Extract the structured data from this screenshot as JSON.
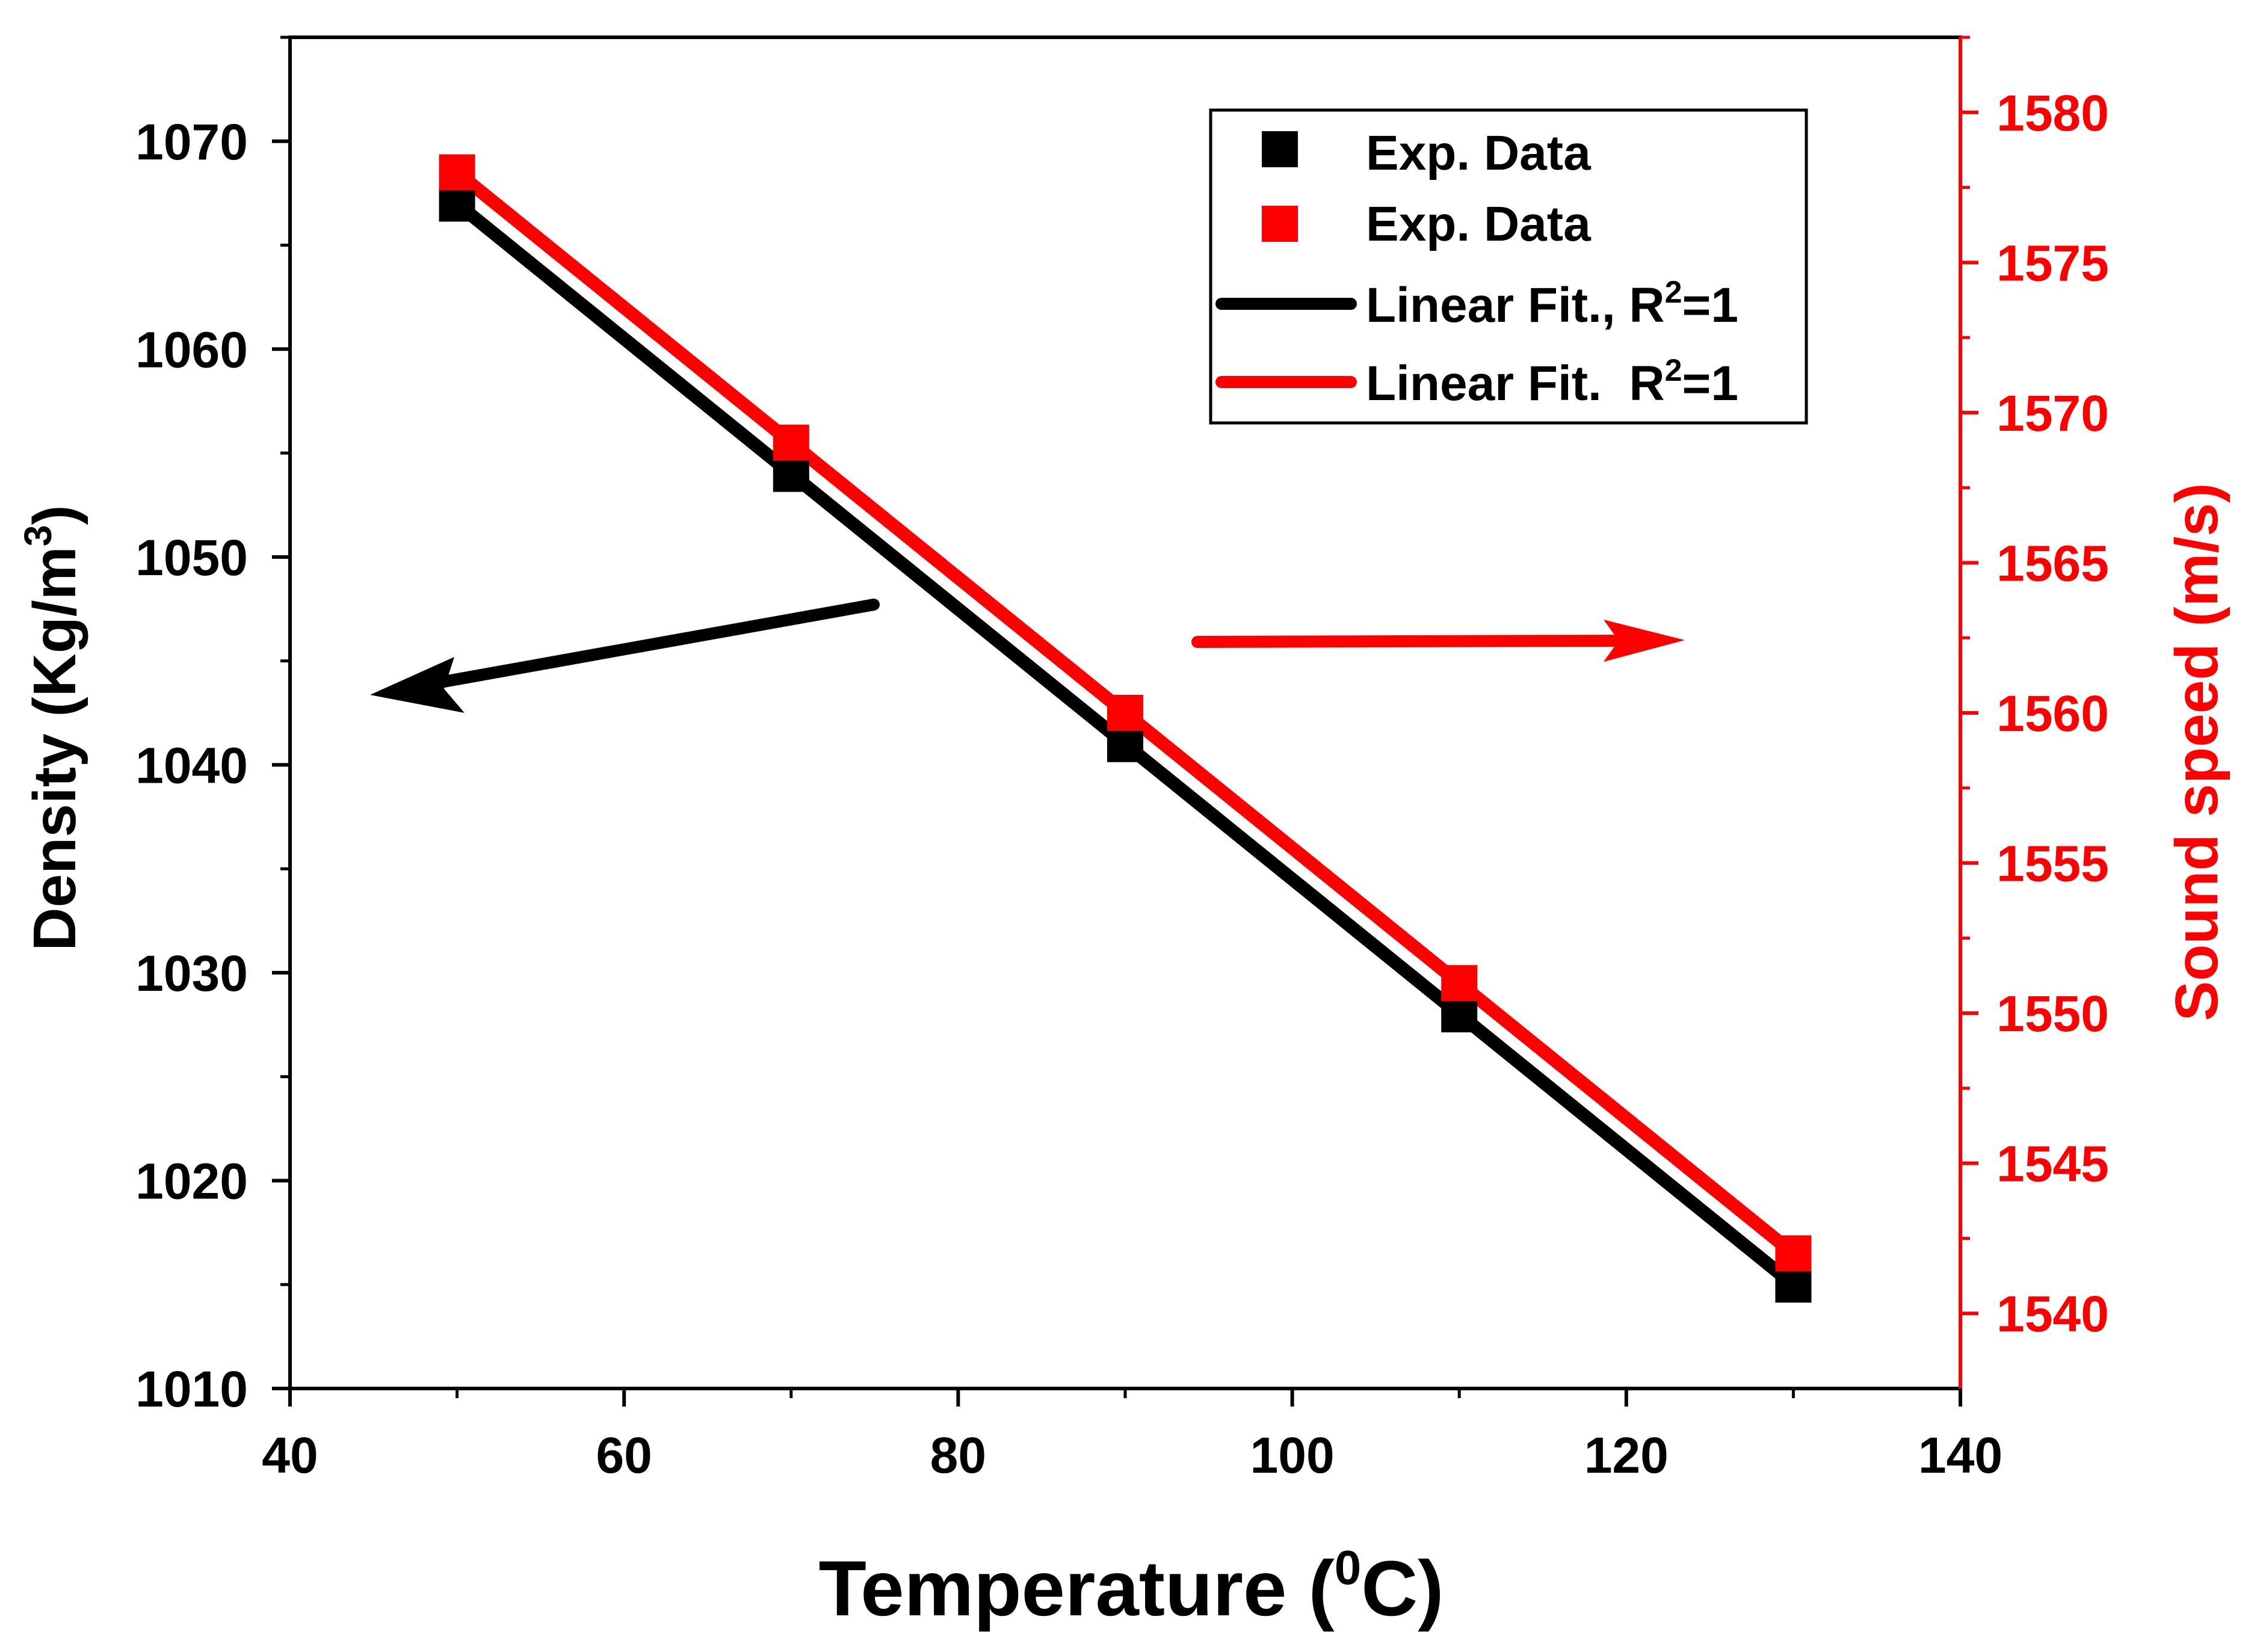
{
  "chart_data": {
    "type": "line",
    "xlabel": "Temperature",
    "xlabel_unit_prefix": "(",
    "xlabel_unit_sup": "0",
    "xlabel_unit_suffix": "C)",
    "ylabel_left": "Density (Kg/m",
    "ylabel_left_sup": "3",
    "ylabel_left_suffix": ")",
    "ylabel_right": "Sound speed (m/s)",
    "xlim": [
      40,
      140
    ],
    "ylim_left": [
      1010,
      1075
    ],
    "ylim_right": [
      1537.5,
      1582.5
    ],
    "x_ticks": [
      40,
      60,
      80,
      100,
      120,
      140
    ],
    "y_left_ticks": [
      1010,
      1020,
      1030,
      1040,
      1050,
      1060,
      1070
    ],
    "y_right_ticks": [
      1540,
      1545,
      1550,
      1555,
      1560,
      1565,
      1570,
      1575,
      1580
    ],
    "series": [
      {
        "name": "Exp. Data",
        "axis": "left",
        "color": "#000000",
        "x": [
          50,
          70,
          90,
          110,
          130
        ],
        "values": [
          1067,
          1054,
          1041,
          1028,
          1015
        ]
      },
      {
        "name": "Exp. Data",
        "axis": "right",
        "color": "#ff0000",
        "x": [
          50,
          70,
          90,
          110,
          130
        ],
        "values": [
          1578,
          1569,
          1560,
          1551,
          1542
        ]
      }
    ],
    "fits": [
      {
        "name": "Linear Fit., R",
        "sup": "2",
        "suffix": "=1",
        "axis": "left",
        "color": "#000000"
      },
      {
        "name": "Linear Fit.  R",
        "sup": "2",
        "suffix": "=1",
        "axis": "right",
        "color": "#ff0000"
      }
    ],
    "legend_position": "top-right",
    "annotations": [
      {
        "type": "arrow",
        "direction": "left",
        "color": "#000000",
        "meaning": "left axis"
      },
      {
        "type": "arrow",
        "direction": "right",
        "color": "#ff0000",
        "meaning": "right axis"
      }
    ]
  }
}
